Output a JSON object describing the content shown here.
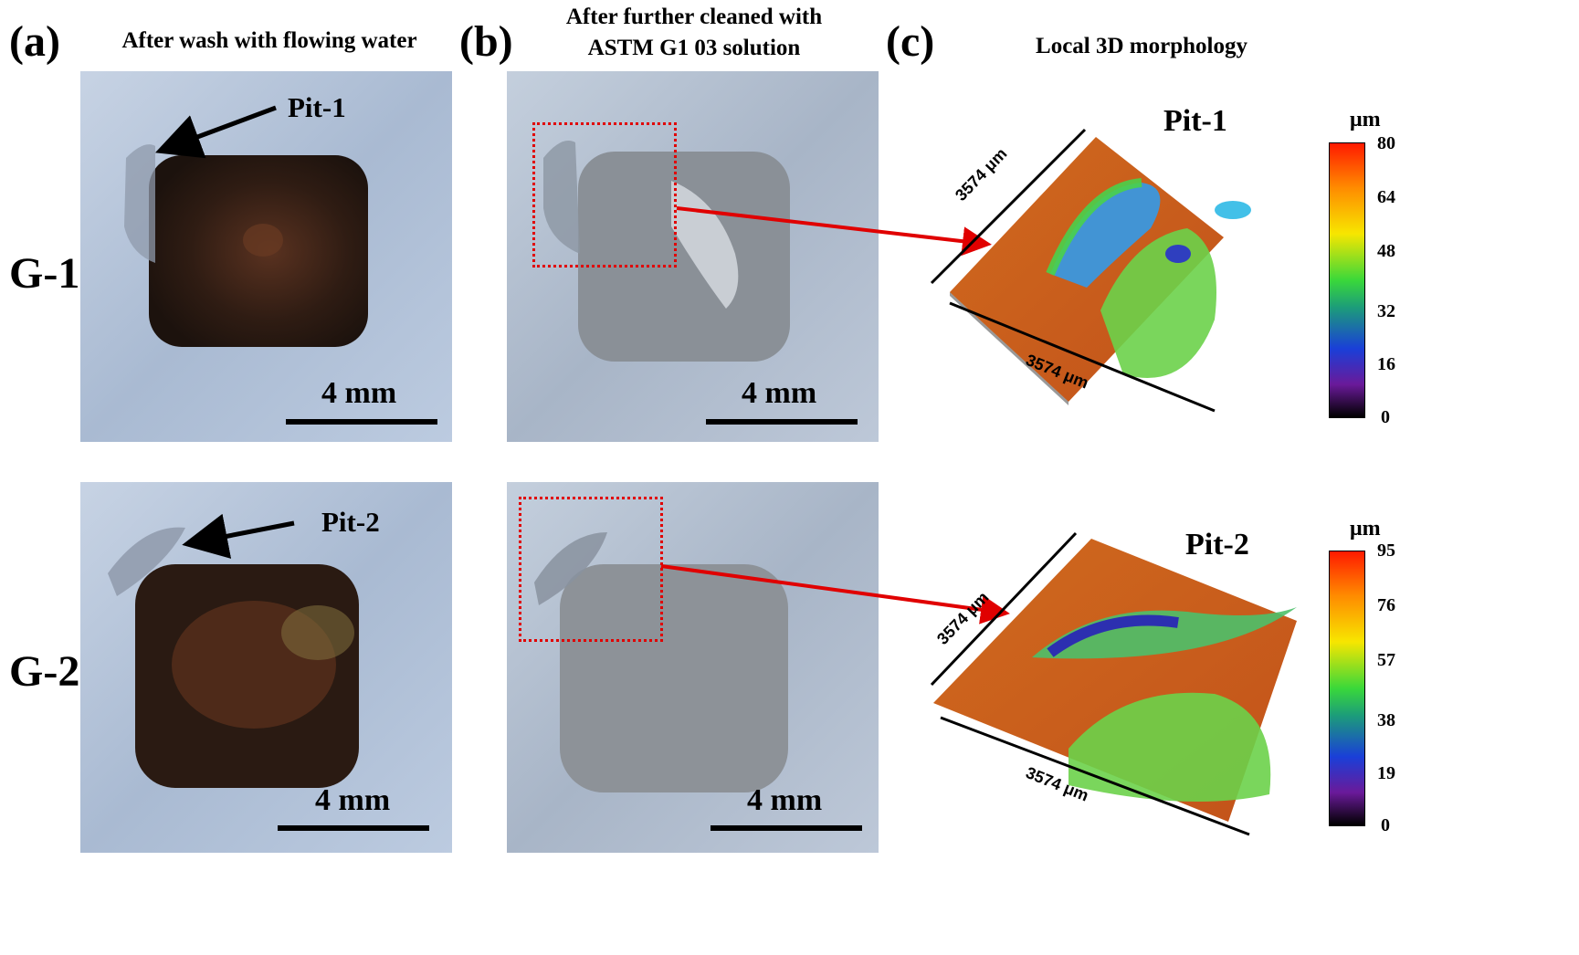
{
  "panels": {
    "a": {
      "letter": "(a)",
      "heading": "After wash with flowing water"
    },
    "b": {
      "letter": "(b)",
      "heading_line1": "After further cleaned with",
      "heading_line2": "ASTM G1 03 solution"
    },
    "c": {
      "letter": "(c)",
      "heading": "Local 3D morphology"
    }
  },
  "rows": [
    {
      "label": "G-1",
      "pit_label": "Pit-1",
      "scale_bar": "4 mm",
      "map_title": "Pit-1",
      "dim": "3574 μm",
      "unit": "μm",
      "ticks": [
        "80",
        "64",
        "48",
        "32",
        "16",
        "0"
      ]
    },
    {
      "label": "G-2",
      "pit_label": "Pit-2",
      "scale_bar": "4 mm",
      "map_title": "Pit-2",
      "dim": "3574 μm",
      "unit": "μm",
      "ticks": [
        "95",
        "76",
        "57",
        "38",
        "19",
        "0"
      ]
    }
  ],
  "colors": {
    "photo_metal": "#aebdd3",
    "corrosion_dark": "#2a1a12",
    "arrow_red": "#e00000",
    "map_base": "#d05a17"
  }
}
